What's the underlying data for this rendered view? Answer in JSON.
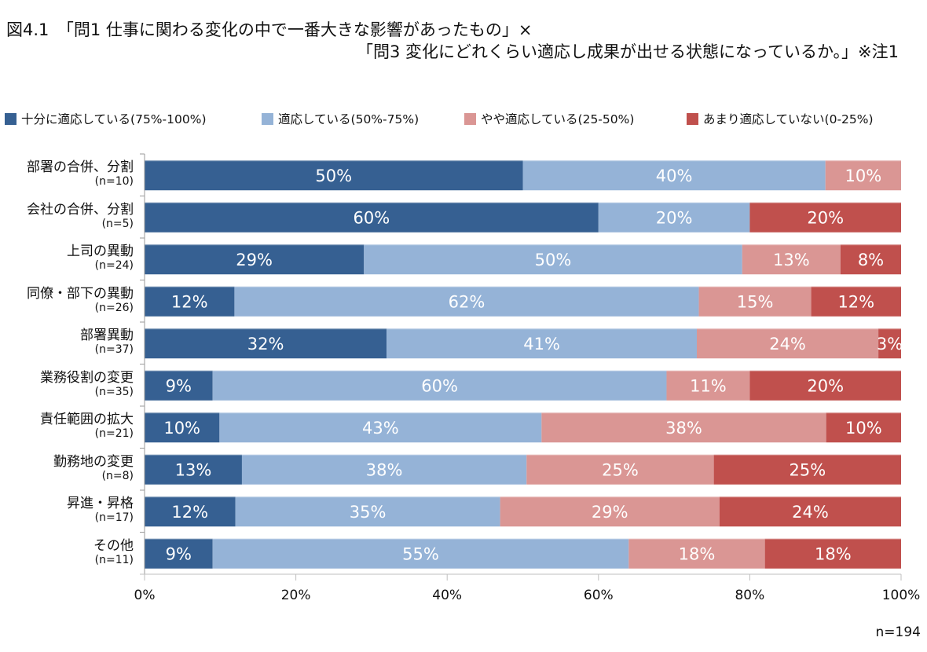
{
  "header": {
    "title_line1": "図4.1　「問1 仕事に関わる変化の中で一番大きな影響があったもの」×",
    "title_line2": "「問3 変化にどれくらい適応し成果が出せる状態になっているか。」※注1"
  },
  "footer": {
    "n_total": "n=194"
  },
  "chart_data": {
    "type": "bar",
    "orientation": "horizontal",
    "stacked": "percent",
    "title": "図4.1　「問1 仕事に関わる変化の中で一番大きな影響があったもの」×「問3 変化にどれくらい適応し成果が出せる状態になっているか。」※注1",
    "xlabel": "",
    "ylabel": "",
    "xlim": [
      0,
      100
    ],
    "x_ticks": [
      "0%",
      "20%",
      "40%",
      "60%",
      "80%",
      "100%"
    ],
    "x_tick_values": [
      0,
      20,
      40,
      60,
      80,
      100
    ],
    "grid": false,
    "legend_position": "top",
    "categories": [
      {
        "name": "部署の合併、分割",
        "n": "(n=10)"
      },
      {
        "name": "会社の合併、分割",
        "n": "(n=5)"
      },
      {
        "name": "上司の異動",
        "n": "(n=24)"
      },
      {
        "name": "同僚・部下の異動",
        "n": "(n=26)"
      },
      {
        "name": "部署異動",
        "n": "(n=37)"
      },
      {
        "name": "業務役割の変更",
        "n": "(n=35)"
      },
      {
        "name": "責任範囲の拡大",
        "n": "(n=21)"
      },
      {
        "name": "勤務地の変更",
        "n": "(n=8)"
      },
      {
        "name": "昇進・昇格",
        "n": "(n=17)"
      },
      {
        "name": "その他",
        "n": "(n=11)"
      }
    ],
    "series": [
      {
        "name": "十分に適応している(75%-100%)",
        "color": "#366092",
        "values": [
          50,
          60,
          29,
          12,
          32,
          9,
          10,
          13,
          12,
          9
        ]
      },
      {
        "name": "適応している(50%-75%)",
        "color": "#95b3d7",
        "values": [
          40,
          20,
          50,
          62,
          41,
          60,
          43,
          38,
          35,
          55
        ]
      },
      {
        "name": "やや適応している(25-50%)",
        "color": "#da9694",
        "values": [
          10,
          0,
          13,
          15,
          24,
          11,
          38,
          25,
          29,
          18
        ]
      },
      {
        "name": "あまり適応していない(0-25%)",
        "color": "#c0504d",
        "values": [
          0,
          20,
          8,
          12,
          3,
          20,
          10,
          25,
          24,
          18
        ]
      }
    ],
    "data_label_suffix": "%",
    "n_total": "n=194"
  }
}
